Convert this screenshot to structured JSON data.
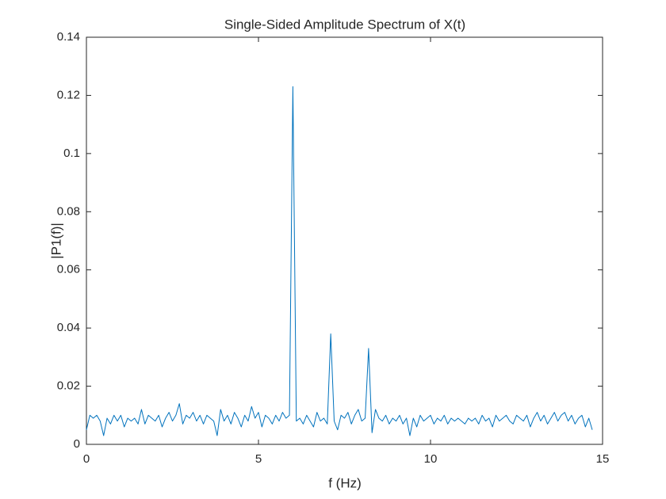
{
  "chart_data": {
    "type": "line",
    "title": "Single-Sided Amplitude Spectrum of X(t)",
    "xlabel": "f (Hz)",
    "ylabel": "|P1(f)|",
    "x": [
      0,
      0.1,
      0.2,
      0.3,
      0.4,
      0.5,
      0.6,
      0.7,
      0.8,
      0.9,
      1,
      1.1,
      1.2,
      1.3,
      1.4,
      1.5,
      1.6,
      1.7,
      1.8,
      1.9,
      2,
      2.1,
      2.2,
      2.3,
      2.4,
      2.5,
      2.6,
      2.7,
      2.8,
      2.9,
      3,
      3.1,
      3.2,
      3.3,
      3.4,
      3.5,
      3.6,
      3.7,
      3.8,
      3.9,
      4,
      4.1,
      4.2,
      4.3,
      4.4,
      4.5,
      4.6,
      4.7,
      4.8,
      4.9,
      5,
      5.1,
      5.2,
      5.3,
      5.4,
      5.5,
      5.6,
      5.7,
      5.8,
      5.9,
      6,
      6.1,
      6.2,
      6.3,
      6.4,
      6.5,
      6.6,
      6.7,
      6.8,
      6.9,
      7,
      7.1,
      7.2,
      7.3,
      7.4,
      7.5,
      7.6,
      7.7,
      7.8,
      7.9,
      8,
      8.1,
      8.2,
      8.3,
      8.4,
      8.5,
      8.6,
      8.7,
      8.8,
      8.9,
      9,
      9.1,
      9.2,
      9.3,
      9.4,
      9.5,
      9.6,
      9.7,
      9.8,
      9.9,
      10,
      10.1,
      10.2,
      10.3,
      10.4,
      10.5,
      10.6,
      10.7,
      10.8,
      10.9,
      11,
      11.1,
      11.2,
      11.3,
      11.4,
      11.5,
      11.6,
      11.7,
      11.8,
      11.9,
      12,
      12.1,
      12.2,
      12.3,
      12.4,
      12.5,
      12.6,
      12.7,
      12.8,
      12.9,
      13,
      13.1,
      13.2,
      13.3,
      13.4,
      13.5,
      13.6,
      13.7,
      13.8,
      13.9,
      14,
      14.1,
      14.2,
      14.3,
      14.4,
      14.5,
      14.6,
      14.7
    ],
    "series": [
      {
        "color": "#0072bd",
        "values": [
          0.005,
          0.01,
          0.009,
          0.01,
          0.008,
          0.003,
          0.009,
          0.007,
          0.01,
          0.008,
          0.01,
          0.006,
          0.009,
          0.008,
          0.009,
          0.007,
          0.012,
          0.007,
          0.01,
          0.009,
          0.008,
          0.01,
          0.006,
          0.009,
          0.011,
          0.008,
          0.01,
          0.014,
          0.007,
          0.01,
          0.009,
          0.011,
          0.008,
          0.01,
          0.007,
          0.01,
          0.009,
          0.008,
          0.003,
          0.012,
          0.008,
          0.01,
          0.007,
          0.011,
          0.009,
          0.006,
          0.01,
          0.008,
          0.013,
          0.009,
          0.011,
          0.006,
          0.01,
          0.009,
          0.007,
          0.01,
          0.008,
          0.011,
          0.009,
          0.01,
          0.123,
          0.008,
          0.009,
          0.007,
          0.01,
          0.008,
          0.006,
          0.011,
          0.008,
          0.009,
          0.007,
          0.038,
          0.008,
          0.005,
          0.01,
          0.009,
          0.011,
          0.007,
          0.01,
          0.012,
          0.008,
          0.009,
          0.033,
          0.004,
          0.012,
          0.009,
          0.008,
          0.01,
          0.007,
          0.009,
          0.008,
          0.01,
          0.007,
          0.009,
          0.003,
          0.009,
          0.006,
          0.01,
          0.008,
          0.009,
          0.01,
          0.007,
          0.009,
          0.008,
          0.01,
          0.007,
          0.009,
          0.008,
          0.009,
          0.008,
          0.007,
          0.009,
          0.008,
          0.009,
          0.007,
          0.01,
          0.008,
          0.009,
          0.006,
          0.01,
          0.008,
          0.009,
          0.01,
          0.008,
          0.007,
          0.01,
          0.009,
          0.008,
          0.01,
          0.006,
          0.009,
          0.011,
          0.008,
          0.01,
          0.007,
          0.009,
          0.011,
          0.008,
          0.01,
          0.011,
          0.008,
          0.01,
          0.007,
          0.009,
          0.01,
          0.006,
          0.009,
          0.005
        ]
      }
    ],
    "xlim": [
      0,
      15
    ],
    "ylim": [
      0,
      0.14
    ],
    "xticks": [
      0,
      5,
      10,
      15
    ],
    "yticks": [
      0,
      0.02,
      0.04,
      0.06,
      0.08,
      0.1,
      0.12,
      0.14
    ]
  }
}
